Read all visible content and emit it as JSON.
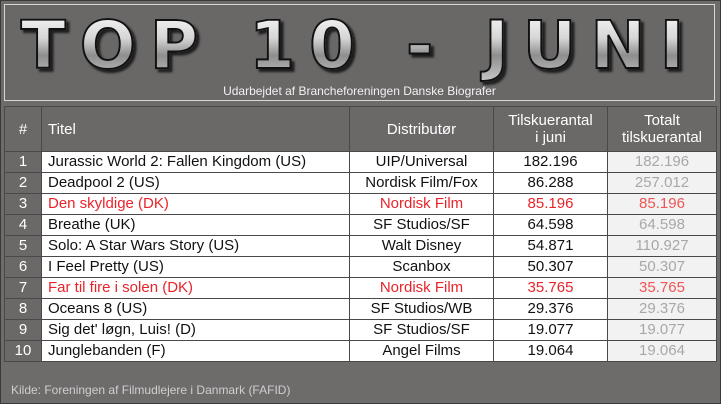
{
  "banner": {
    "title": "TOP 10 - JUNI",
    "subtitle": "Udarbejdet af Brancheforeningen Danske Biografer"
  },
  "headers": {
    "rank": "#",
    "title": "Titel",
    "distributor": "Distributør",
    "month_line1": "Tilskuerantal",
    "month_line2": "i juni",
    "total_line1": "Totalt",
    "total_line2": "tilskuerantal"
  },
  "rows": [
    {
      "rank": "1",
      "title": "Jurassic World 2: Fallen Kingdom (US)",
      "distributor": "UIP/Universal",
      "month": "182.196",
      "total": "182.196"
    },
    {
      "rank": "2",
      "title": "Deadpool 2 (US)",
      "distributor": "Nordisk Film/Fox",
      "month": "86.288",
      "total": "257.012"
    },
    {
      "rank": "3",
      "title": "Den skyldige (DK)",
      "distributor": "Nordisk Film",
      "month": "85.196",
      "total": "85.196"
    },
    {
      "rank": "4",
      "title": "Breathe (UK)",
      "distributor": "SF Studios/SF",
      "month": "64.598",
      "total": "64.598"
    },
    {
      "rank": "5",
      "title": "Solo: A Star Wars Story (US)",
      "distributor": "Walt Disney",
      "month": "54.871",
      "total": "110.927"
    },
    {
      "rank": "6",
      "title": "I Feel Pretty (US)",
      "distributor": "Scanbox",
      "month": "50.307",
      "total": "50.307"
    },
    {
      "rank": "7",
      "title": "Far til fire i solen (DK)",
      "distributor": "Nordisk Film",
      "month": "35.765",
      "total": "35.765"
    },
    {
      "rank": "8",
      "title": "Oceans 8 (US)",
      "distributor": "SF Studios/WB",
      "month": "29.376",
      "total": "29.376"
    },
    {
      "rank": "9",
      "title": "Sig det' løgn, Luis! (D)",
      "distributor": "SF Studios/SF",
      "month": "19.077",
      "total": "19.077"
    },
    {
      "rank": "10",
      "title": "Junglebanden (F)",
      "distributor": "Angel Films",
      "month": "19.064",
      "total": "19.064"
    }
  ],
  "source": "Kilde: Foreningen af Filmudlejere i Danmark (FAFID)",
  "colors": {
    "danish_highlight": "#e8242a",
    "frame": "#6e6b6b",
    "total_text": "#a8a8a8"
  }
}
